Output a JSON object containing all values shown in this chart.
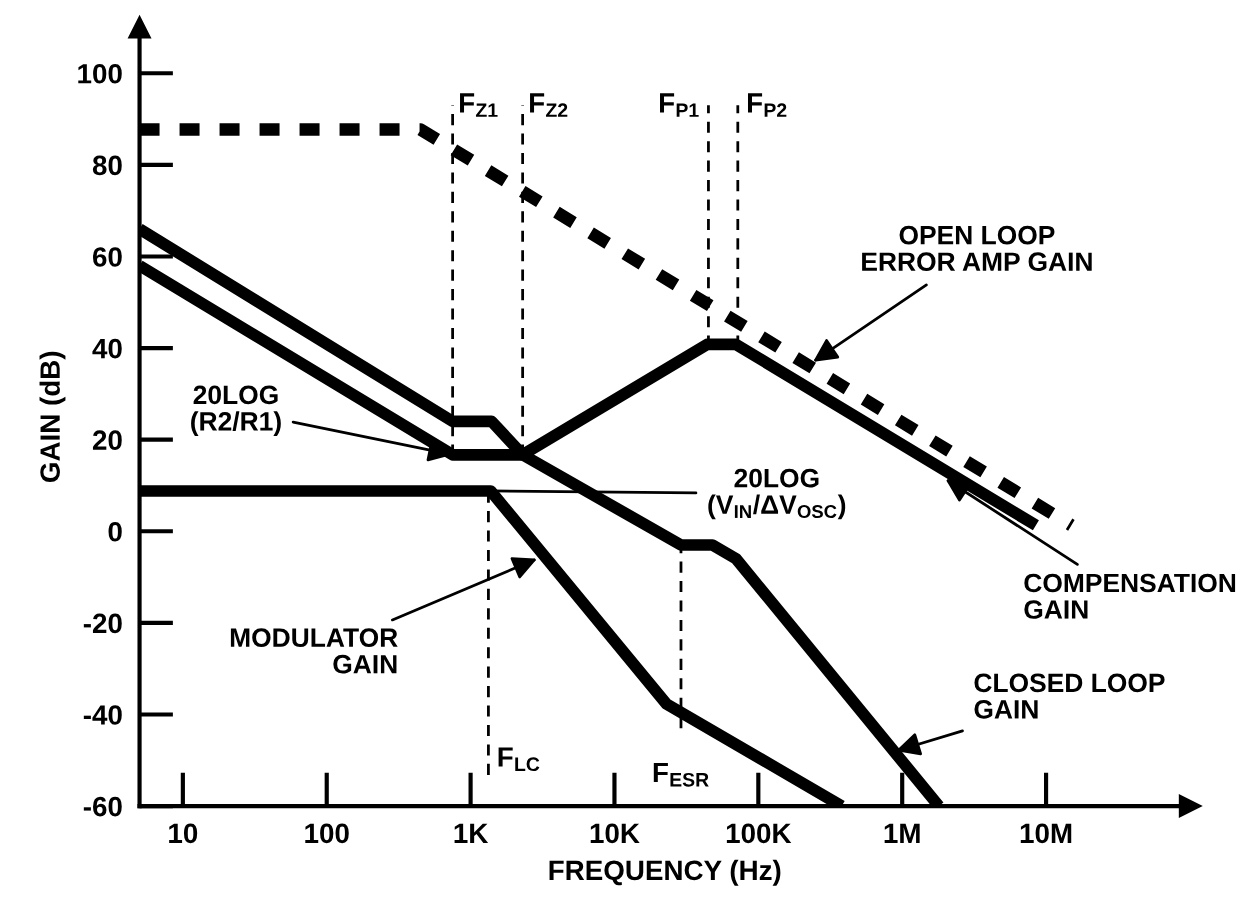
{
  "chart_data": {
    "type": "line",
    "xlabel": "FREQUENCY (Hz)",
    "ylabel": "GAIN (dB)",
    "log": "x",
    "xlim": [
      5,
      100000000
    ],
    "ylim": [
      -60,
      110
    ],
    "xticks": [
      {
        "value": 10,
        "label": "10"
      },
      {
        "value": 100,
        "label": "100"
      },
      {
        "value": 1000,
        "label": "1K"
      },
      {
        "value": 10000,
        "label": "10K"
      },
      {
        "value": 100000,
        "label": "100K"
      },
      {
        "value": 1000000,
        "label": "1M"
      },
      {
        "value": 10000000,
        "label": "10M"
      }
    ],
    "yticks": [
      -60,
      -40,
      -20,
      0,
      20,
      40,
      60,
      80,
      100
    ],
    "grid": false,
    "legend": false,
    "marker": "none",
    "series": [
      {
        "color": "#000000",
        "line_style": "dashed",
        "x": [
          5,
          450,
          15000000
        ],
        "values": [
          87.7,
          87.7,
          1.3
        ]
      },
      {
        "color": "#000000",
        "line_style": "solid",
        "x": [
          5,
          750,
          1400,
          2300,
          44000,
          70000,
          8500000
        ],
        "values": [
          66,
          24,
          24,
          16.7,
          40.8,
          40.8,
          1.3
        ]
      },
      {
        "color": "#000000",
        "line_style": "solid",
        "x": [
          5,
          750,
          2300,
          29000,
          48000,
          70000,
          1800000
        ],
        "values": [
          58,
          16.7,
          16.7,
          -3,
          -3,
          -6,
          -60
        ]
      },
      {
        "color": "#000000",
        "line_style": "solid",
        "x": [
          5,
          1380,
          23000,
          380000
        ],
        "values": [
          8.8,
          8.8,
          -37.7,
          -60
        ]
      }
    ],
    "ref_lines": [
      {
        "axis": "x",
        "value": 750,
        "line_style": "dashed",
        "color": "#000000",
        "label": "F$_{Z1}$"
      },
      {
        "axis": "x",
        "value": 2300,
        "line_style": "dashed",
        "color": "#000000",
        "label": "F$_{Z2}$"
      },
      {
        "axis": "x",
        "value": 45000,
        "line_style": "dashed",
        "color": "#000000",
        "label": "F$_{P1}$"
      },
      {
        "axis": "x",
        "value": 72000,
        "line_style": "dashed",
        "color": "#000000",
        "label": "F$_{P2}$"
      },
      {
        "axis": "x",
        "value": 1330,
        "line_style": "dashed",
        "color": "#000000",
        "label": "F$_{LC}$"
      },
      {
        "axis": "x",
        "value": 29000,
        "line_style": "dashed",
        "color": "#000000",
        "label": "F$_{ESR}$"
      }
    ],
    "annotations": [
      {
        "text": "OPEN LOOP\nERROR AMP GAIN",
        "x": 240000,
        "y": 37
      },
      {
        "text": "20LOG\n(R2/R1)",
        "x": 750,
        "y": 16.7
      },
      {
        "text": "20LOG\n(V$_{IN}$/ΔV$_{OSC}$)",
        "x": 1380,
        "y": 8.8
      },
      {
        "text": "MODULATOR\nGAIN",
        "x": 2900,
        "y": -6
      },
      {
        "text": "COMPENSATION\nGAIN",
        "x": 2000000,
        "y": 11.4
      },
      {
        "text": "CLOSED LOOP\nGAIN",
        "x": 900000,
        "y": -48
      }
    ]
  }
}
